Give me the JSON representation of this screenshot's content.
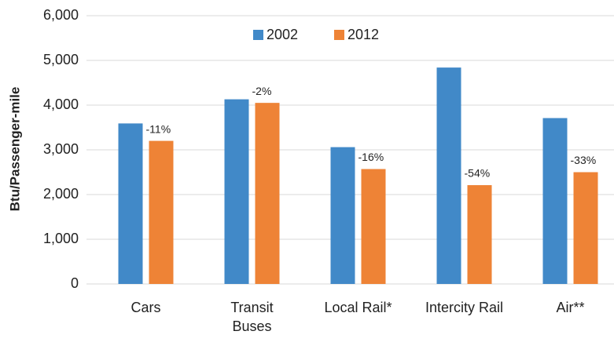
{
  "chart_data": {
    "type": "bar",
    "y_label": "Btu/Passenger-mile",
    "categories": [
      "Cars",
      "Transit Buses",
      "Local Rail*",
      "Intercity Rail",
      "Air**"
    ],
    "series": [
      {
        "name": "2002",
        "color": "#4189c8",
        "values": [
          3590,
          4130,
          3060,
          4840,
          3710
        ]
      },
      {
        "name": "2012",
        "color": "#ee8336",
        "values": [
          3200,
          4050,
          2570,
          2210,
          2500
        ]
      }
    ],
    "annotations": [
      "-11%",
      "-2%",
      "-16%",
      "-54%",
      "-33%"
    ],
    "ylim": [
      0,
      6000
    ],
    "yticks": [
      0,
      {
        "value": 1000,
        "label": "1,000"
      },
      {
        "value": 2000,
        "label": "2,000"
      },
      {
        "value": 3000,
        "label": "3,000"
      },
      {
        "value": 4000,
        "label": "4,000"
      },
      {
        "value": 5000,
        "label": "5,000"
      },
      {
        "value": 6000,
        "label": "6,000"
      }
    ],
    "grid": true,
    "legend": "top"
  }
}
